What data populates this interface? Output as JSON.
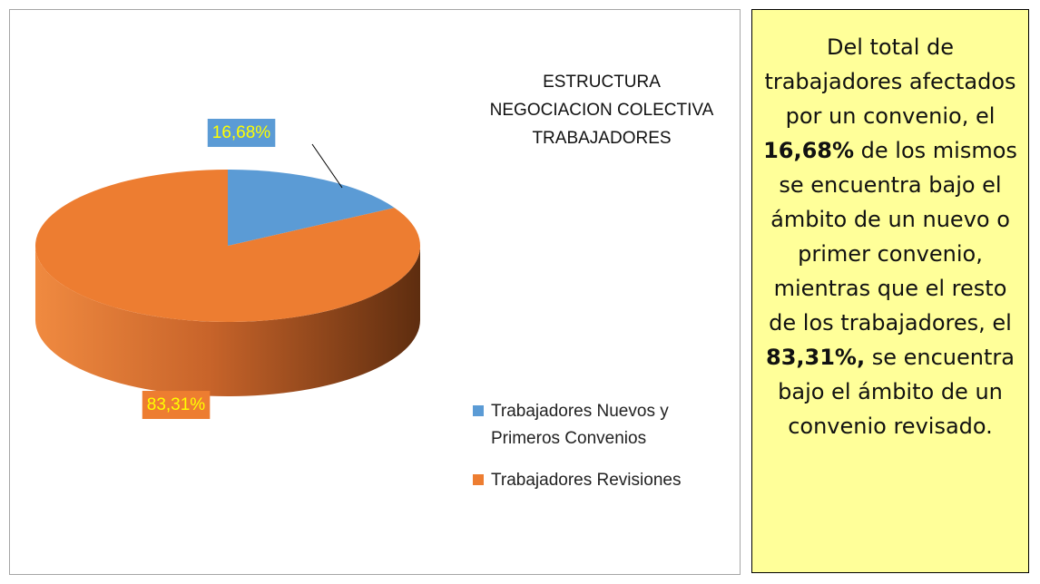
{
  "chart_data": {
    "type": "pie",
    "title": [
      "ESTRUCTURA",
      "NEGOCIACION COLECTIVA",
      "TRABAJADORES"
    ],
    "categories": [
      "Trabajadores Nuevos y Primeros Convenios",
      "Trabajadores Revisiones"
    ],
    "values": [
      16.68,
      83.31
    ],
    "value_labels": [
      "16,68%",
      "83,31%"
    ],
    "colors": [
      "#5b9bd5",
      "#ed7d31"
    ],
    "legend": "right"
  },
  "note": {
    "segments": [
      {
        "text": "Del total de trabajadores afectados por un convenio, el ",
        "bold": false
      },
      {
        "text": "16,68%",
        "bold": true
      },
      {
        "text": " de los mismos se encuentra bajo el ámbito de un nuevo o primer convenio, mientras que el resto de los trabajadores, el ",
        "bold": false
      },
      {
        "text": "83,31%,",
        "bold": true
      },
      {
        "text": " se encuentra bajo el ámbito de un convenio revisado.",
        "bold": false
      }
    ]
  }
}
